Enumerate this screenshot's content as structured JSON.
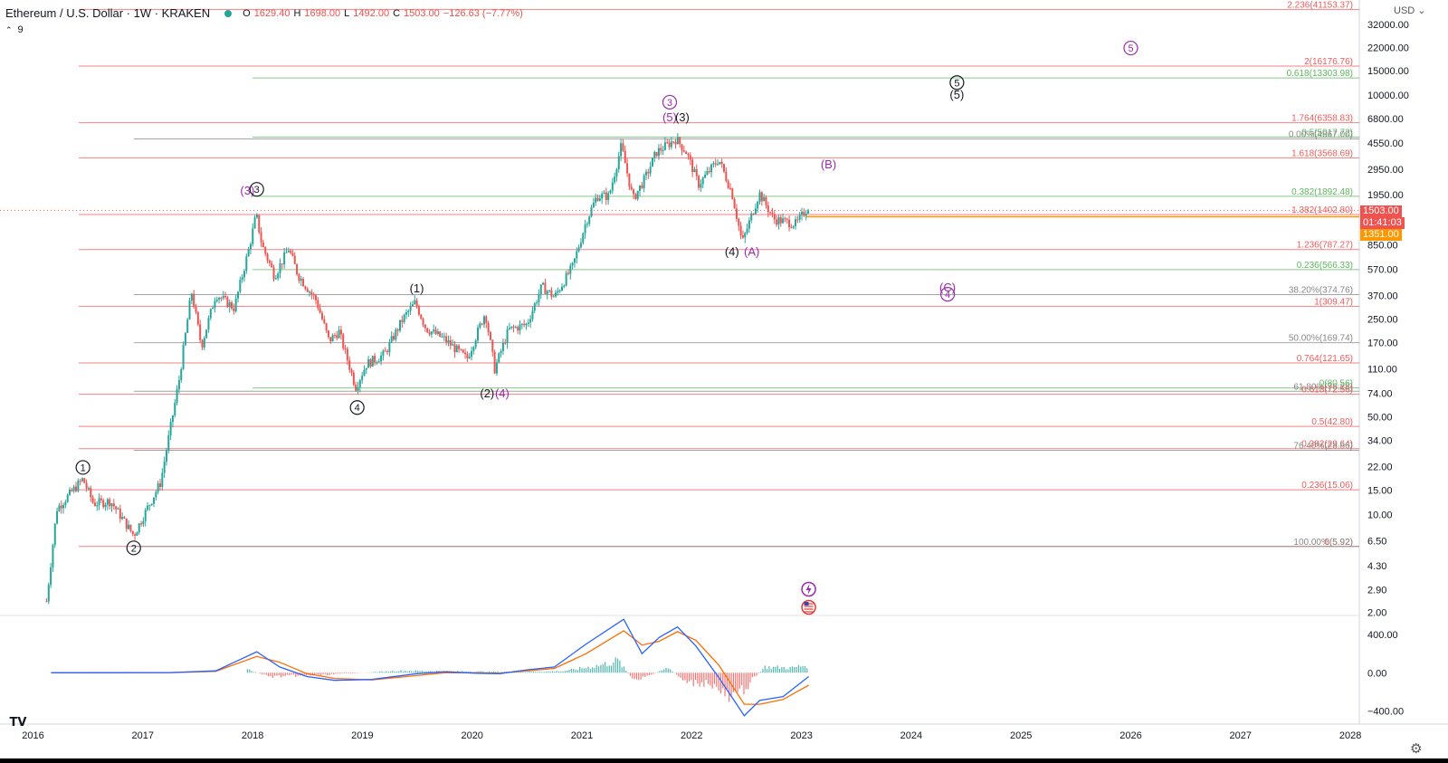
{
  "header": {
    "symbol": "Ethereum / U.S. Dollar · 1W · KRAKEN",
    "open_label": "O",
    "open": "1629.40",
    "high_label": "H",
    "high": "1698.00",
    "low_label": "L",
    "low": "1492.00",
    "close_label": "C",
    "close": "1503.00",
    "change": "−126.63 (−7.77%)",
    "indicator_count": "9"
  },
  "currency": "USD",
  "price_tags": {
    "last_price": "1503.00",
    "countdown": "01:41:03",
    "horizontal_line": "1351.00"
  },
  "colors": {
    "up": "#26a69a",
    "down": "#ef5350",
    "fib_red": "#f05a5a",
    "fib_green": "#5cb85c",
    "fib_gray": "#888888",
    "wave_black": "#131722",
    "wave_purple": "#9c27b0",
    "orange_line": "#ff9800",
    "macd_line": "#2962ff",
    "signal_line": "#ff6d00"
  },
  "icons": {
    "logo": "tradingview-logo-icon",
    "settings": "gear-icon",
    "lightning": "lightning-icon",
    "flag": "us-flag-icon"
  },
  "chart_data": [
    {
      "type": "candlestick",
      "scale": "log",
      "x_tick_labels": [
        "2016",
        "2017",
        "2018",
        "2019",
        "2020",
        "2021",
        "2022",
        "2023",
        "2024",
        "2025",
        "2026",
        "2027",
        "2028"
      ],
      "y_tick_labels": [
        "32000.00",
        "22000.00",
        "15000.00",
        "10000.00",
        "6800.00",
        "4550.00",
        "2950.00",
        "1950.00",
        "850.00",
        "570.00",
        "370.00",
        "250.00",
        "170.00",
        "110.00",
        "74.00",
        "50.00",
        "34.00",
        "22.00",
        "15.00",
        "10.00",
        "6.50",
        "4.30",
        "2.90",
        "2.00"
      ],
      "y_tick_values": [
        32000,
        22000,
        15000,
        10000,
        6800,
        4550,
        2950,
        1950,
        850,
        570,
        370,
        250,
        170,
        110,
        74,
        50,
        34,
        22,
        15,
        10,
        6.5,
        4.3,
        2.9,
        2.0
      ],
      "x_range": [
        "2016-01-01",
        "2028-01-01"
      ],
      "y_range": [
        1.9,
        48000
      ],
      "price_path": [
        [
          "2016-02-15",
          2.4
        ],
        [
          "2016-03-20",
          11
        ],
        [
          "2016-06-15",
          18
        ],
        [
          "2016-07-20",
          12
        ],
        [
          "2016-09-15",
          12.5
        ],
        [
          "2016-12-01",
          7.1
        ],
        [
          "2017-01-15",
          11
        ],
        [
          "2017-03-01",
          17
        ],
        [
          "2017-05-01",
          90
        ],
        [
          "2017-06-12",
          395
        ],
        [
          "2017-07-15",
          160
        ],
        [
          "2017-09-01",
          380
        ],
        [
          "2017-11-01",
          300
        ],
        [
          "2017-12-20",
          800
        ],
        [
          "2018-01-13",
          1400
        ],
        [
          "2018-02-01",
          850
        ],
        [
          "2018-03-15",
          510
        ],
        [
          "2018-05-01",
          800
        ],
        [
          "2018-06-01",
          520
        ],
        [
          "2018-08-01",
          340
        ],
        [
          "2018-09-12",
          175
        ],
        [
          "2018-10-15",
          205
        ],
        [
          "2018-12-10",
          82
        ],
        [
          "2019-01-15",
          120
        ],
        [
          "2019-03-15",
          140
        ],
        [
          "2019-05-15",
          250
        ],
        [
          "2019-06-26",
          330
        ],
        [
          "2019-08-01",
          215
        ],
        [
          "2019-10-01",
          180
        ],
        [
          "2019-12-15",
          130
        ],
        [
          "2020-02-14",
          280
        ],
        [
          "2020-03-16",
          110
        ],
        [
          "2020-05-01",
          210
        ],
        [
          "2020-07-01",
          230
        ],
        [
          "2020-08-20",
          430
        ],
        [
          "2020-10-01",
          360
        ],
        [
          "2020-12-01",
          600
        ],
        [
          "2021-01-15",
          1250
        ],
        [
          "2021-02-20",
          1900
        ],
        [
          "2021-04-01",
          1900
        ],
        [
          "2021-05-12",
          4350
        ],
        [
          "2021-06-20",
          1800
        ],
        [
          "2021-08-01",
          2600
        ],
        [
          "2021-09-05",
          3900
        ],
        [
          "2021-11-10",
          4870
        ],
        [
          "2021-12-15",
          3900
        ],
        [
          "2022-01-24",
          2300
        ],
        [
          "2022-04-01",
          3500
        ],
        [
          "2022-05-15",
          2000
        ],
        [
          "2022-06-18",
          880
        ],
        [
          "2022-08-14",
          2000
        ],
        [
          "2022-10-01",
          1300
        ],
        [
          "2022-12-15",
          1200
        ],
        [
          "2023-01-25",
          1620
        ]
      ],
      "fib_levels": [
        {
          "label": "2.236(41153.37)",
          "value": 41153.37,
          "color": "red",
          "start": "2016-06-01"
        },
        {
          "label": "2(16176.76)",
          "value": 16176.76,
          "color": "red",
          "start": "2016-06-01"
        },
        {
          "label": "0.618(13303.98)",
          "value": 13303.98,
          "color": "green",
          "start": "2018-01-01"
        },
        {
          "label": "1.764(6358.83)",
          "value": 6358.83,
          "color": "red",
          "start": "2016-06-01"
        },
        {
          "label": "0.5(5017.72)",
          "value": 5017.72,
          "color": "green",
          "start": "2018-01-01"
        },
        {
          "label": "0.00%(4867.00)",
          "value": 4867.0,
          "color": "gray",
          "start": "2016-12-01"
        },
        {
          "label": "1.618(3568.69)",
          "value": 3568.69,
          "color": "red",
          "start": "2016-06-01"
        },
        {
          "label": "0.382(1892.48)",
          "value": 1892.48,
          "color": "green",
          "start": "2018-01-01"
        },
        {
          "label": "1.382(1402.80)",
          "value": 1402.8,
          "color": "red",
          "start": "2016-06-01"
        },
        {
          "label": "1.236(787.27)",
          "value": 787.27,
          "color": "red",
          "start": "2016-06-01"
        },
        {
          "label": "0.236(566.33)",
          "value": 566.33,
          "color": "green",
          "start": "2018-01-01"
        },
        {
          "label": "38.20%(374.76)",
          "value": 374.76,
          "color": "gray",
          "start": "2016-12-01"
        },
        {
          "label": "1(309.47)",
          "value": 309.47,
          "color": "red",
          "start": "2016-06-01"
        },
        {
          "label": "50.00%(169.74)",
          "value": 169.74,
          "color": "gray",
          "start": "2016-12-01"
        },
        {
          "label": "0.764(121.65)",
          "value": 121.65,
          "color": "red",
          "start": "2016-06-01"
        },
        {
          "label": "0(80.56)",
          "value": 80.56,
          "color": "green",
          "start": "2018-01-01"
        },
        {
          "label": "61.80%(76.28)",
          "value": 76.28,
          "color": "gray",
          "start": "2016-12-01"
        },
        {
          "label": "0.618(72.56)",
          "value": 72.56,
          "color": "red",
          "start": "2016-06-01"
        },
        {
          "label": "0.5(42.80)",
          "value": 42.8,
          "color": "red",
          "start": "2016-06-01"
        },
        {
          "label": "0.382(29.64)",
          "value": 29.64,
          "color": "red",
          "start": "2016-06-01"
        },
        {
          "label": "76.40%(28.86)",
          "value": 28.86,
          "color": "gray",
          "start": "2016-12-01"
        },
        {
          "label": "0.236(15.06)",
          "value": 15.06,
          "color": "red",
          "start": "2016-06-01"
        },
        {
          "label": "0(5.92)",
          "value": 5.92,
          "color": "red",
          "start": "2016-06-01"
        },
        {
          "label": "100.00%(5.92)",
          "value": 5.92,
          "color": "gray",
          "start": "2016-12-01"
        }
      ],
      "horizontal_lines": [
        {
          "value": 1351.0,
          "color": "orange",
          "start": "2023-01-15"
        }
      ],
      "wave_labels": [
        {
          "text": "1",
          "circled": true,
          "color": "black",
          "x": "2016-06-15",
          "y": 20.5
        },
        {
          "text": "2",
          "circled": true,
          "color": "black",
          "x": "2016-12-01",
          "y": 5.45
        },
        {
          "text": "(3)",
          "circled": false,
          "color": "purple",
          "x": "2017-12-15",
          "y": 1980
        },
        {
          "text": "3",
          "circled": true,
          "color": "black",
          "x": "2018-01-15",
          "y": 2000
        },
        {
          "text": "4",
          "circled": true,
          "color": "black",
          "x": "2018-12-15",
          "y": 55
        },
        {
          "text": "(1)",
          "circled": false,
          "color": "black",
          "x": "2019-07-01",
          "y": 395
        },
        {
          "text": "(2)",
          "circled": false,
          "color": "black",
          "x": "2020-02-20",
          "y": 70
        },
        {
          "text": "(4)",
          "circled": false,
          "color": "purple",
          "x": "2020-04-10",
          "y": 70
        },
        {
          "text": "3",
          "circled": true,
          "color": "purple",
          "x": "2021-10-20",
          "y": 8400
        },
        {
          "text": "(5)",
          "circled": false,
          "color": "purple",
          "x": "2021-10-20",
          "y": 6600
        },
        {
          "text": "(3)",
          "circled": false,
          "color": "black",
          "x": "2021-12-01",
          "y": 6600
        },
        {
          "text": "(4)",
          "circled": false,
          "color": "black",
          "x": "2022-05-15",
          "y": 720
        },
        {
          "text": "(A)",
          "circled": false,
          "color": "purple",
          "x": "2022-07-20",
          "y": 720
        },
        {
          "text": "(B)",
          "circled": false,
          "color": "purple",
          "x": "2023-04-01",
          "y": 3050
        },
        {
          "text": "(C)",
          "circled": false,
          "color": "purple",
          "x": "2024-05-01",
          "y": 400
        },
        {
          "text": "4",
          "circled": true,
          "color": "purple",
          "x": "2024-05-01",
          "y": 355
        },
        {
          "text": "5",
          "circled": true,
          "color": "black",
          "x": "2024-06-01",
          "y": 11600
        },
        {
          "text": "(5)",
          "circled": false,
          "color": "black",
          "x": "2024-06-01",
          "y": 9600
        },
        {
          "text": "5",
          "circled": true,
          "color": "purple",
          "x": "2026-01-01",
          "y": 20500
        }
      ]
    },
    {
      "type": "macd",
      "y_tick_labels": [
        "400.00",
        "0.00",
        "−400.00"
      ],
      "y_tick_values": [
        400,
        0,
        -400
      ],
      "y_range": [
        -500,
        600
      ],
      "macd": [
        [
          "2016-03-01",
          0
        ],
        [
          "2017-04-01",
          2
        ],
        [
          "2017-09-01",
          20
        ],
        [
          "2018-01-15",
          220
        ],
        [
          "2018-04-01",
          60
        ],
        [
          "2018-07-01",
          -40
        ],
        [
          "2018-10-01",
          -80
        ],
        [
          "2019-02-01",
          -70
        ],
        [
          "2019-07-01",
          -10
        ],
        [
          "2019-10-01",
          10
        ],
        [
          "2020-01-15",
          -5
        ],
        [
          "2020-04-01",
          -10
        ],
        [
          "2020-07-01",
          30
        ],
        [
          "2020-10-01",
          60
        ],
        [
          "2021-01-15",
          300
        ],
        [
          "2021-05-20",
          560
        ],
        [
          "2021-07-20",
          200
        ],
        [
          "2021-09-15",
          370
        ],
        [
          "2021-11-15",
          480
        ],
        [
          "2022-01-15",
          280
        ],
        [
          "2022-04-01",
          -50
        ],
        [
          "2022-06-25",
          -450
        ],
        [
          "2022-08-15",
          -290
        ],
        [
          "2022-11-01",
          -250
        ],
        [
          "2023-01-25",
          -40
        ]
      ],
      "signal": [
        [
          "2016-03-01",
          0
        ],
        [
          "2017-04-01",
          1
        ],
        [
          "2017-09-01",
          15
        ],
        [
          "2018-01-15",
          170
        ],
        [
          "2018-04-01",
          110
        ],
        [
          "2018-07-01",
          -10
        ],
        [
          "2018-10-01",
          -60
        ],
        [
          "2019-02-01",
          -75
        ],
        [
          "2019-07-01",
          -30
        ],
        [
          "2019-10-01",
          0
        ],
        [
          "2020-01-15",
          0
        ],
        [
          "2020-04-01",
          -5
        ],
        [
          "2020-07-01",
          20
        ],
        [
          "2020-10-01",
          45
        ],
        [
          "2021-01-15",
          200
        ],
        [
          "2021-05-20",
          440
        ],
        [
          "2021-07-20",
          290
        ],
        [
          "2021-09-15",
          330
        ],
        [
          "2021-11-15",
          430
        ],
        [
          "2022-01-15",
          340
        ],
        [
          "2022-04-01",
          80
        ],
        [
          "2022-06-25",
          -330
        ],
        [
          "2022-08-15",
          -330
        ],
        [
          "2022-11-01",
          -280
        ],
        [
          "2023-01-25",
          -130
        ]
      ],
      "histogram": [
        [
          "2017-12-15",
          40
        ],
        [
          "2018-03-01",
          -50
        ],
        [
          "2018-09-01",
          -25
        ],
        [
          "2019-05-01",
          25
        ],
        [
          "2020-06-01",
          10
        ],
        [
          "2020-11-01",
          20
        ],
        [
          "2021-03-01",
          90
        ],
        [
          "2021-05-01",
          150
        ],
        [
          "2021-06-25",
          -110
        ],
        [
          "2021-10-15",
          60
        ],
        [
          "2021-12-15",
          -130
        ],
        [
          "2022-03-01",
          -120
        ],
        [
          "2022-05-15",
          -350
        ],
        [
          "2022-07-01",
          -170
        ],
        [
          "2022-09-01",
          70
        ],
        [
          "2022-12-01",
          60
        ],
        [
          "2023-01-25",
          100
        ]
      ]
    }
  ]
}
